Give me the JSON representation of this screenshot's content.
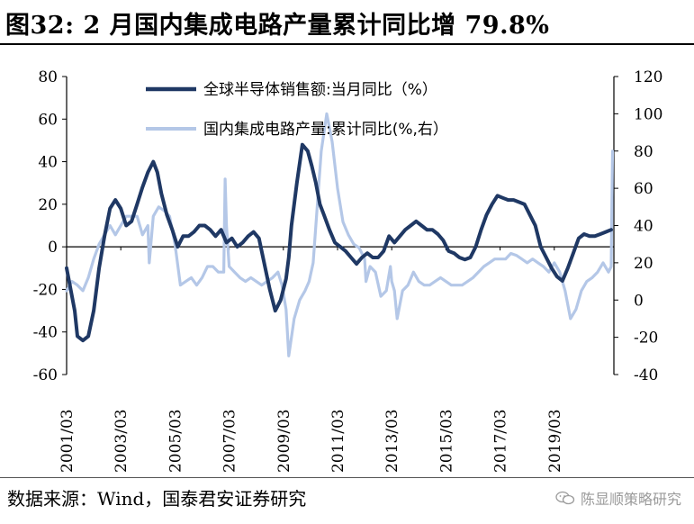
{
  "title": "图32: 2 月国内集成电路产量累计同比增 79.8%",
  "source": "数据来源：Wind，国泰君安证券研究",
  "watermark": "陈显顺策略研究",
  "chart_data": {
    "type": "line",
    "x_labels": [
      "2001/03",
      "2003/03",
      "2005/03",
      "2007/03",
      "2009/03",
      "2011/03",
      "2013/03",
      "2015/03",
      "2017/03",
      "2019/03"
    ],
    "x_range": [
      2001.0,
      2021.2
    ],
    "left_axis": {
      "ylim": [
        -60,
        80
      ],
      "ticks": [
        -60,
        -40,
        -20,
        0,
        20,
        40,
        60,
        80
      ]
    },
    "right_axis": {
      "ylim": [
        -40,
        120
      ],
      "ticks": [
        -40,
        -20,
        0,
        20,
        40,
        60,
        80,
        100,
        120
      ]
    },
    "legend_position": "top-center",
    "series": [
      {
        "name": "全球半导体销售额:当月同比（%）",
        "axis": "left",
        "color": "#1f3864",
        "x": [
          2001.0,
          2001.15,
          2001.3,
          2001.4,
          2001.6,
          2001.8,
          2002.0,
          2002.2,
          2002.4,
          2002.6,
          2002.8,
          2003.0,
          2003.2,
          2003.4,
          2003.6,
          2003.8,
          2004.0,
          2004.2,
          2004.35,
          2004.5,
          2004.7,
          2004.9,
          2005.1,
          2005.3,
          2005.5,
          2005.7,
          2005.9,
          2006.1,
          2006.3,
          2006.5,
          2006.7,
          2006.9,
          2007.1,
          2007.3,
          2007.5,
          2007.7,
          2007.9,
          2008.1,
          2008.3,
          2008.5,
          2008.7,
          2008.9,
          2009.1,
          2009.2,
          2009.3,
          2009.5,
          2009.7,
          2009.9,
          2010.05,
          2010.2,
          2010.35,
          2010.5,
          2010.7,
          2010.9,
          2011.1,
          2011.3,
          2011.5,
          2011.7,
          2011.9,
          2012.1,
          2012.3,
          2012.5,
          2012.7,
          2012.9,
          2013.1,
          2013.3,
          2013.5,
          2013.7,
          2013.9,
          2014.1,
          2014.3,
          2014.5,
          2014.7,
          2014.9,
          2015.1,
          2015.3,
          2015.5,
          2015.7,
          2015.9,
          2016.1,
          2016.3,
          2016.5,
          2016.7,
          2016.9,
          2017.1,
          2017.3,
          2017.5,
          2017.7,
          2017.9,
          2018.1,
          2018.3,
          2018.5,
          2018.7,
          2018.9,
          2019.1,
          2019.3,
          2019.5,
          2019.7,
          2019.9,
          2020.1,
          2020.3,
          2020.5,
          2020.7,
          2020.9,
          2021.1
        ],
        "y": [
          -10,
          -20,
          -30,
          -42,
          -44,
          -42,
          -30,
          -10,
          5,
          18,
          22,
          18,
          10,
          12,
          20,
          28,
          35,
          40,
          35,
          25,
          15,
          8,
          0,
          5,
          5,
          7,
          10,
          10,
          8,
          5,
          8,
          2,
          4,
          0,
          2,
          5,
          7,
          4,
          -8,
          -20,
          -30,
          -25,
          -15,
          -5,
          10,
          30,
          48,
          45,
          38,
          30,
          20,
          15,
          8,
          2,
          0,
          -2,
          -5,
          -8,
          -5,
          -3,
          -5,
          -5,
          -2,
          5,
          2,
          5,
          8,
          10,
          12,
          10,
          8,
          8,
          6,
          3,
          -2,
          -3,
          -5,
          -6,
          -5,
          0,
          8,
          15,
          20,
          24,
          23,
          22,
          22,
          21,
          20,
          15,
          10,
          0,
          -5,
          -10,
          -14,
          -16,
          -10,
          -3,
          4,
          6,
          5,
          5,
          6,
          7,
          8
        ]
      },
      {
        "name": "国内集成电路产量:累计同比(%,右）",
        "axis": "right",
        "color": "#b4c7e7",
        "x": [
          2001.0,
          2001.2,
          2001.4,
          2001.6,
          2001.8,
          2002.0,
          2002.2,
          2002.4,
          2002.6,
          2002.8,
          2003.0,
          2003.2,
          2003.4,
          2003.6,
          2003.8,
          2004.0,
          2004.05,
          2004.2,
          2004.4,
          2004.6,
          2004.8,
          2005.0,
          2005.2,
          2005.4,
          2005.6,
          2005.8,
          2006.0,
          2006.2,
          2006.4,
          2006.6,
          2006.8,
          2006.85,
          2006.9,
          2007.0,
          2007.2,
          2007.4,
          2007.6,
          2007.8,
          2008.0,
          2008.2,
          2008.4,
          2008.6,
          2008.8,
          2008.95,
          2009.1,
          2009.2,
          2009.4,
          2009.6,
          2009.8,
          2009.95,
          2010.1,
          2010.2,
          2010.4,
          2010.6,
          2010.8,
          2011.0,
          2011.2,
          2011.4,
          2011.6,
          2011.8,
          2012.0,
          2012.05,
          2012.2,
          2012.4,
          2012.6,
          2012.8,
          2012.95,
          2013.0,
          2013.1,
          2013.2,
          2013.4,
          2013.6,
          2013.8,
          2014.0,
          2014.2,
          2014.4,
          2014.6,
          2014.8,
          2015.0,
          2015.2,
          2015.4,
          2015.6,
          2015.8,
          2016.0,
          2016.2,
          2016.4,
          2016.6,
          2016.8,
          2017.0,
          2017.2,
          2017.4,
          2017.6,
          2017.8,
          2018.0,
          2018.2,
          2018.4,
          2018.6,
          2018.8,
          2019.0,
          2019.2,
          2019.4,
          2019.6,
          2019.8,
          2020.0,
          2020.2,
          2020.4,
          2020.6,
          2020.8,
          2021.0,
          2021.1,
          2021.15
        ],
        "y": [
          5,
          10,
          8,
          5,
          12,
          22,
          30,
          35,
          40,
          35,
          40,
          45,
          45,
          45,
          35,
          40,
          20,
          45,
          50,
          48,
          45,
          30,
          8,
          10,
          12,
          8,
          12,
          18,
          18,
          15,
          15,
          65,
          40,
          18,
          15,
          12,
          10,
          12,
          10,
          8,
          10,
          12,
          15,
          8,
          -5,
          -30,
          -10,
          0,
          5,
          10,
          20,
          40,
          80,
          100,
          85,
          60,
          42,
          35,
          30,
          28,
          22,
          10,
          18,
          15,
          2,
          5,
          18,
          10,
          5,
          -10,
          5,
          8,
          15,
          10,
          8,
          8,
          10,
          12,
          10,
          8,
          8,
          8,
          10,
          12,
          15,
          18,
          20,
          22,
          22,
          22,
          25,
          24,
          22,
          20,
          22,
          20,
          18,
          15,
          20,
          15,
          5,
          -10,
          -5,
          5,
          10,
          12,
          15,
          20,
          15,
          18,
          80
        ]
      }
    ]
  }
}
